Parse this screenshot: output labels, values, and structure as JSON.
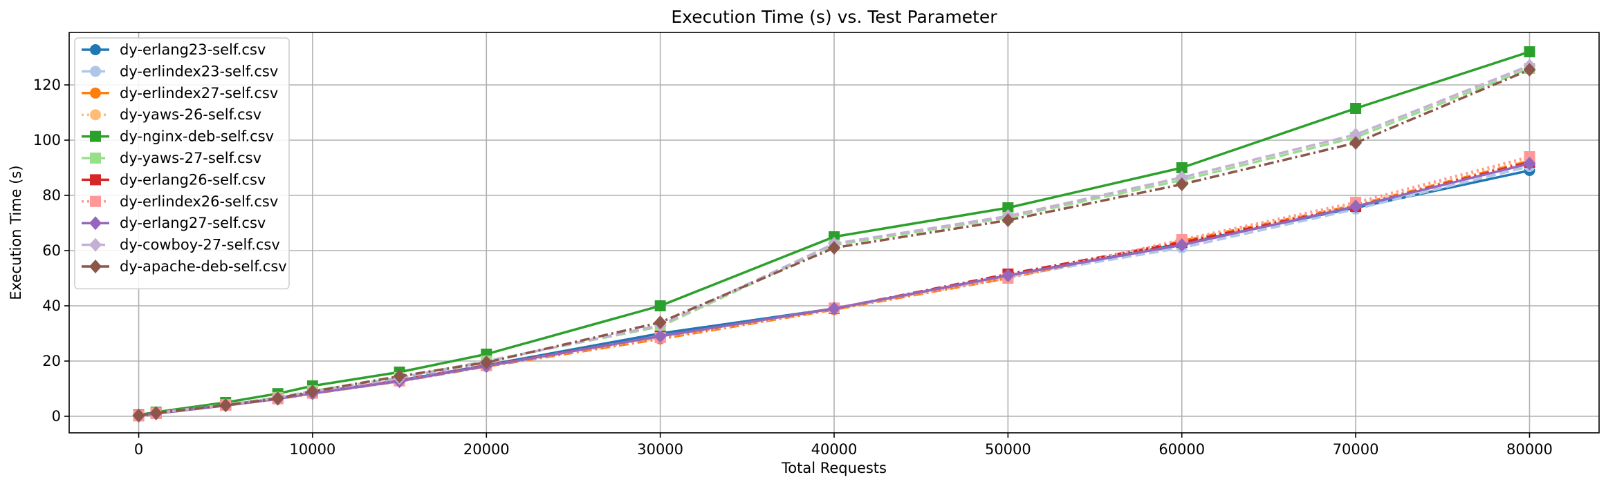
{
  "chart_data": {
    "type": "line",
    "title": "Execution Time (s) vs. Test Parameter",
    "xlabel": "Total Requests",
    "ylabel": "Execution Time (s)",
    "xlim": [
      -4000,
      84000
    ],
    "ylim": [
      -6,
      139
    ],
    "xticks": [
      0,
      10000,
      20000,
      30000,
      40000,
      50000,
      60000,
      70000,
      80000
    ],
    "yticks": [
      0,
      20,
      40,
      60,
      80,
      100,
      120
    ],
    "grid": true,
    "legend_position": "upper-left",
    "x": [
      0,
      1000,
      5000,
      8000,
      10000,
      15000,
      20000,
      30000,
      40000,
      50000,
      60000,
      70000,
      80000
    ],
    "series": [
      {
        "name": "dy-erlang23-self.csv",
        "color": "#1f77b4",
        "marker": "circle",
        "dash": "solid",
        "values": [
          0.2,
          1.0,
          4.0,
          6.5,
          8.5,
          13.0,
          18.5,
          30.0,
          39.0,
          51.0,
          62.5,
          75.5,
          89.0
        ]
      },
      {
        "name": "dy-erlindex23-self.csv",
        "color": "#aec7e8",
        "marker": "circle",
        "dash": "dashed",
        "values": [
          0.2,
          1.0,
          4.0,
          6.3,
          8.3,
          12.8,
          18.3,
          29.0,
          38.8,
          50.5,
          61.0,
          75.0,
          90.5
        ]
      },
      {
        "name": "dy-erlindex27-self.csv",
        "color": "#ff7f0e",
        "marker": "circle",
        "dash": "dashdot",
        "values": [
          0.2,
          1.0,
          3.9,
          6.2,
          8.2,
          12.6,
          18.0,
          28.0,
          38.6,
          50.0,
          63.5,
          76.5,
          92.5
        ]
      },
      {
        "name": "dy-yaws-26-self.csv",
        "color": "#ffbb78",
        "marker": "circle",
        "dash": "dotted",
        "values": [
          0.2,
          1.0,
          3.9,
          6.3,
          8.3,
          12.7,
          18.2,
          28.5,
          38.8,
          50.5,
          63.0,
          77.0,
          93.5
        ]
      },
      {
        "name": "dy-nginx-deb-self.csv",
        "color": "#2ca02c",
        "marker": "square",
        "dash": "solid",
        "values": [
          0.5,
          1.5,
          5.0,
          8.2,
          11.0,
          16.0,
          22.5,
          40.0,
          65.0,
          75.5,
          90.0,
          111.5,
          132.0
        ]
      },
      {
        "name": "dy-yaws-27-self.csv",
        "color": "#98df8a",
        "marker": "square",
        "dash": "dashed",
        "values": [
          0.3,
          1.2,
          4.2,
          6.8,
          9.2,
          14.0,
          20.0,
          32.5,
          62.0,
          72.0,
          85.5,
          101.0,
          126.0
        ]
      },
      {
        "name": "dy-erlang26-self.csv",
        "color": "#d62728",
        "marker": "square",
        "dash": "dashdot",
        "values": [
          0.2,
          1.0,
          4.0,
          6.4,
          8.4,
          12.9,
          18.4,
          29.0,
          39.0,
          51.5,
          63.0,
          76.0,
          92.0
        ]
      },
      {
        "name": "dy-erlindex26-self.csv",
        "color": "#ff9896",
        "marker": "square",
        "dash": "dotted",
        "values": [
          0.2,
          1.0,
          4.0,
          6.4,
          8.4,
          12.8,
          18.3,
          28.5,
          39.2,
          50.0,
          64.0,
          77.5,
          94.0
        ]
      },
      {
        "name": "dy-erlang27-self.csv",
        "color": "#9467bd",
        "marker": "diamond",
        "dash": "solid",
        "values": [
          0.2,
          1.0,
          3.9,
          6.3,
          8.3,
          12.7,
          18.2,
          29.0,
          39.0,
          51.0,
          62.0,
          76.0,
          91.5
        ]
      },
      {
        "name": "dy-cowboy-27-self.csv",
        "color": "#c5b0d5",
        "marker": "diamond",
        "dash": "dashed",
        "values": [
          0.3,
          1.2,
          4.1,
          6.7,
          9.0,
          13.8,
          19.8,
          33.0,
          62.5,
          72.5,
          86.5,
          102.0,
          127.0
        ]
      },
      {
        "name": "dy-apache-deb-self.csv",
        "color": "#8c564b",
        "marker": "diamond",
        "dash": "dashdot",
        "values": [
          0.3,
          1.2,
          4.0,
          6.5,
          9.0,
          14.5,
          19.5,
          34.0,
          61.0,
          71.0,
          84.0,
          99.0,
          125.5
        ]
      }
    ]
  }
}
